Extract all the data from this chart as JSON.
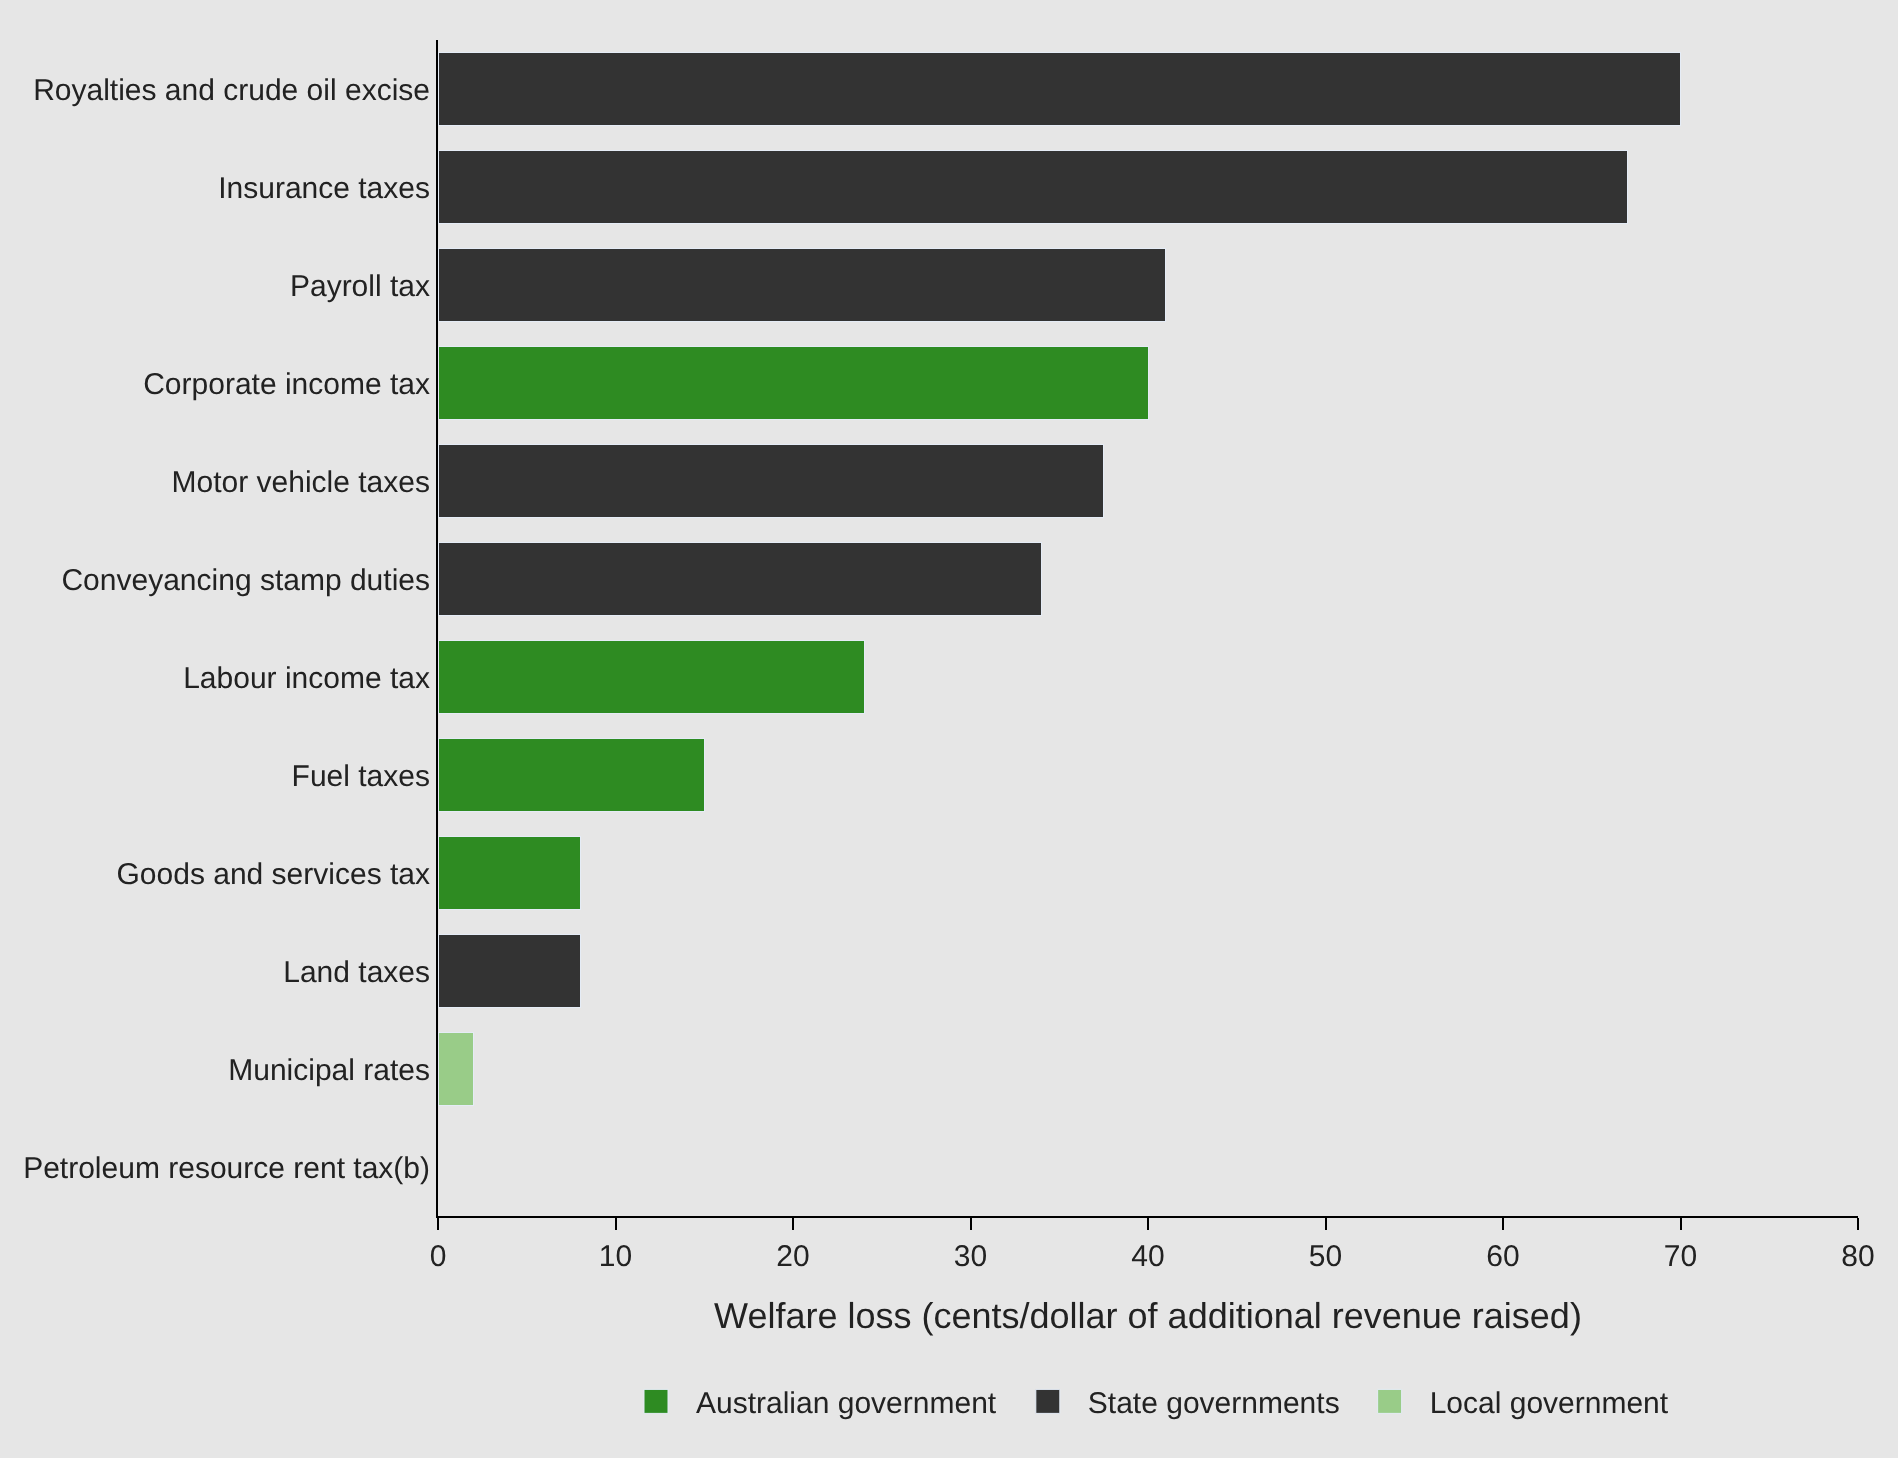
{
  "chart_data": {
    "type": "bar",
    "orientation": "horizontal",
    "stacked": true,
    "xlabel": "Welfare loss (cents/dollar of additional revenue raised)",
    "categories": [
      "Royalties and crude oil excise",
      "Insurance taxes",
      "Payroll tax",
      "Corporate income tax",
      "Motor vehicle taxes",
      "Conveyancing stamp duties",
      "Labour income tax",
      "Fuel taxes",
      "Goods and services tax",
      "Land taxes",
      "Municipal rates",
      "Petroleum resource rent tax(b)"
    ],
    "series": [
      {
        "name": "Australian government",
        "color": "#2e8b22",
        "values": [
          null,
          null,
          null,
          40,
          null,
          null,
          24,
          15,
          8,
          null,
          null,
          null
        ]
      },
      {
        "name": "State governments",
        "color": "#333333",
        "values": [
          70,
          67,
          41,
          null,
          37.5,
          34,
          null,
          null,
          null,
          8,
          null,
          null
        ]
      },
      {
        "name": "Local government",
        "color": "#99cc88",
        "values": [
          null,
          null,
          null,
          null,
          null,
          null,
          null,
          null,
          null,
          null,
          2,
          null
        ]
      }
    ],
    "xlim": [
      0,
      80
    ],
    "xticks": [
      0,
      10,
      20,
      30,
      40,
      50,
      60,
      70,
      80
    ],
    "grid": false,
    "legend": "bottom"
  }
}
